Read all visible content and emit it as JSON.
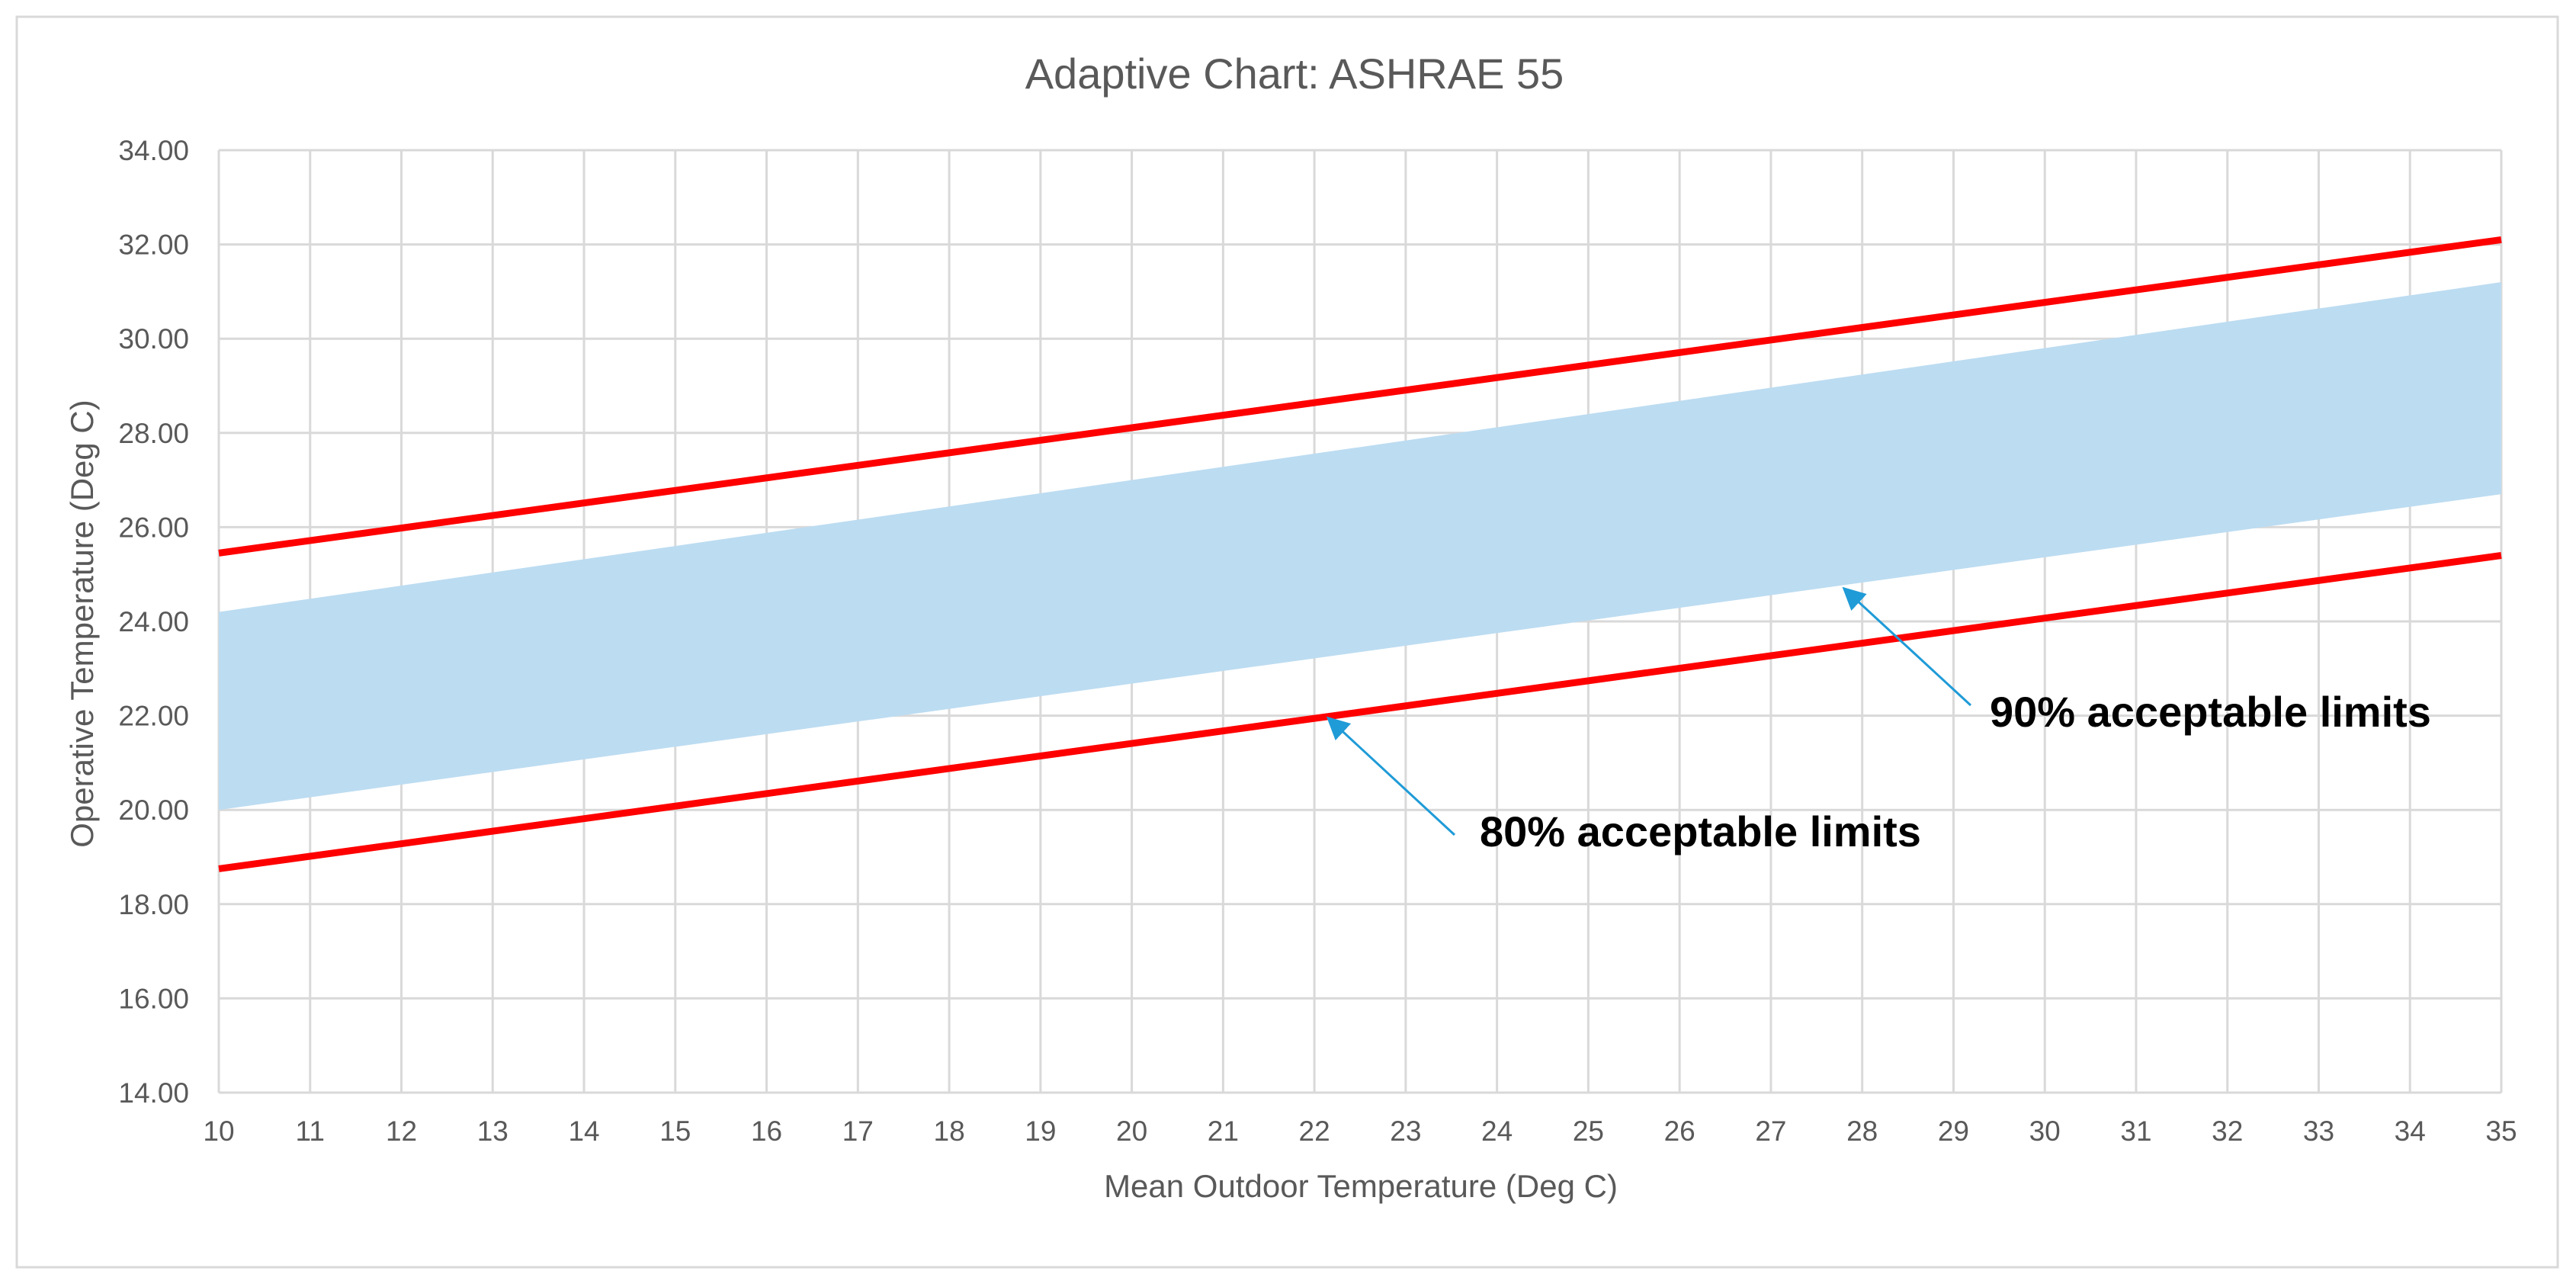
{
  "chart_data": {
    "type": "area",
    "title": "Adaptive Chart: ASHRAE 55",
    "xlabel": "Mean Outdoor Temperature (Deg C)",
    "ylabel": "Operative Temperature (Deg C)",
    "xlim": [
      10,
      35
    ],
    "ylim": [
      14,
      34
    ],
    "x_ticks": [
      "10",
      "11",
      "12",
      "13",
      "14",
      "15",
      "16",
      "17",
      "18",
      "19",
      "20",
      "21",
      "22",
      "23",
      "24",
      "25",
      "26",
      "27",
      "28",
      "29",
      "30",
      "31",
      "32",
      "33",
      "34",
      "35"
    ],
    "y_ticks": [
      "14.00",
      "16.00",
      "18.00",
      "20.00",
      "22.00",
      "24.00",
      "26.00",
      "28.00",
      "30.00",
      "32.00",
      "34.00"
    ],
    "grid": true,
    "series": [
      {
        "kind": "band",
        "color": "#bcdcf1",
        "x": [
          10,
          35
        ],
        "upper": [
          24.2,
          31.2
        ],
        "lower": [
          20.0,
          26.7
        ]
      },
      {
        "kind": "line",
        "color": "#ff0000",
        "x": [
          10,
          35
        ],
        "values": [
          25.45,
          32.1
        ]
      },
      {
        "kind": "line",
        "color": "#ff0000",
        "x": [
          10,
          35
        ],
        "values": [
          18.75,
          25.4
        ]
      }
    ],
    "annotations": [
      {
        "text": "90% acceptable limits",
        "arrow_to": [
          27.8,
          24.7
        ]
      },
      {
        "text": "80% acceptable limits",
        "arrow_to": [
          22.15,
          21.95
        ]
      }
    ],
    "colors": {
      "grid": "#d9d9d9",
      "text": "#595959",
      "arrow": "#1f9bd7",
      "border": "#d9d9d9"
    }
  }
}
